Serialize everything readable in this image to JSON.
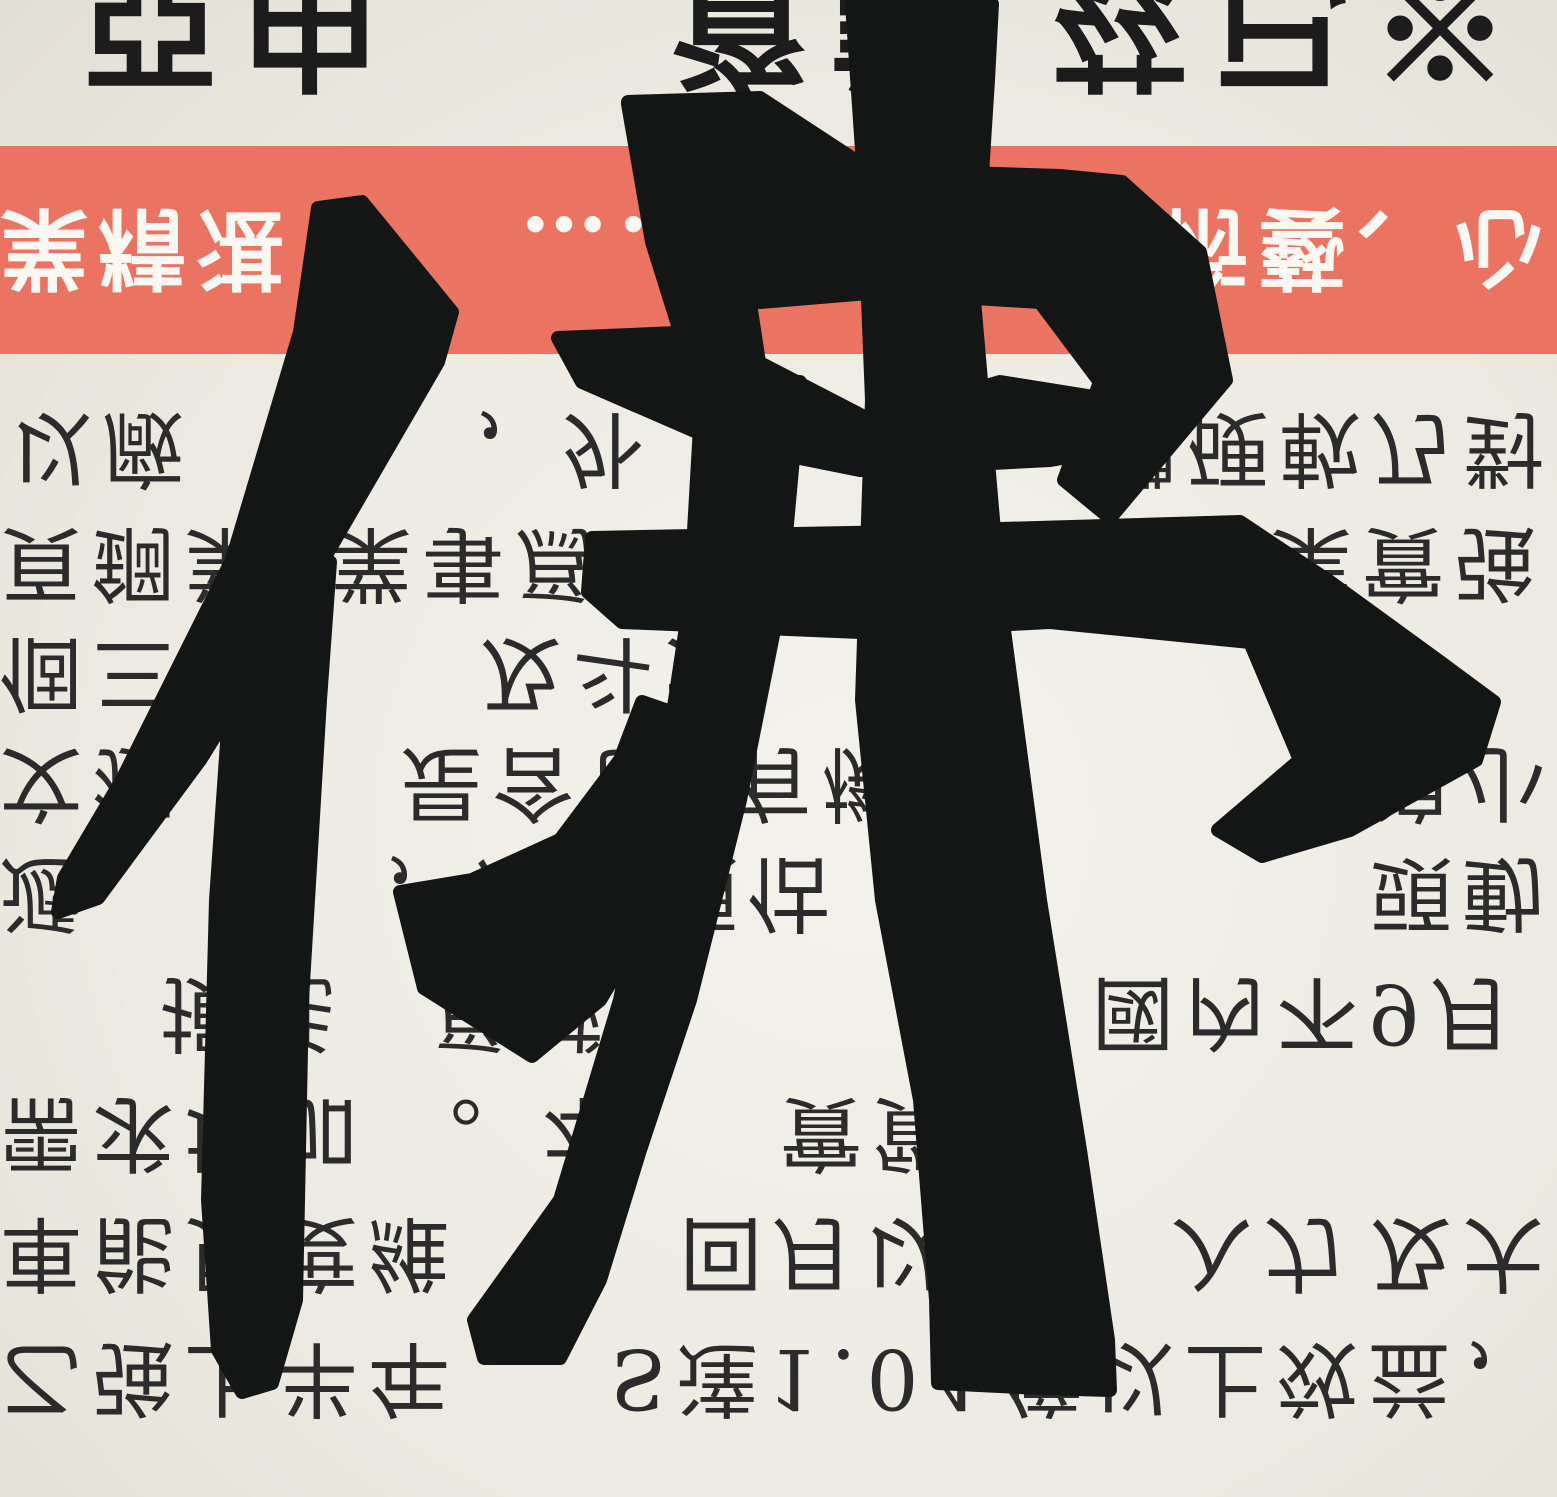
{
  "headline": {
    "segments": [
      "亞由",
      "資訊",
      "茲已※"
    ]
  },
  "banner": {
    "segments": [
      "業精湛",
      "……技",
      "術藝、心"
    ]
  },
  "body": {
    "rows": [
      {
        "segments": [
          "以廠",
          "，外",
          "體硬軟乃對"
        ]
      },
      {
        "segments": [
          "頁鋼業",
          "業事爲",
          "業實強"
        ]
      },
      {
        "segments": [
          "個三",
          "及斗大"
        ]
      },
      {
        "segments": [
          "文獲",
          "是含包",
          "有機會",
          "浪小"
        ]
      },
      {
        "segments": [
          "遞",
          "，法人預估",
          "頭動"
        ]
      },
      {
        "segments": [
          "損耗",
          "爲減",
          "，國內不9月"
        ]
      },
      {
        "segments": [
          "需求增加",
          "。本",
          "實質"
        ]
      },
      {
        "segments": [
          "車能見度維",
          "回月以",
          "入力",
          "及大"
        ]
      },
      {
        "segments": [
          "乙強上半年",
          "S達1.04",
          "億以上效益，"
        ]
      }
    ]
  },
  "calligraphy": {
    "character": "佛"
  },
  "colors": {
    "paper": "#eeede5",
    "banner": "#ea7461",
    "banner_text": "#fbf7f2",
    "print": "#2b2b2b",
    "ink": "#141616"
  }
}
